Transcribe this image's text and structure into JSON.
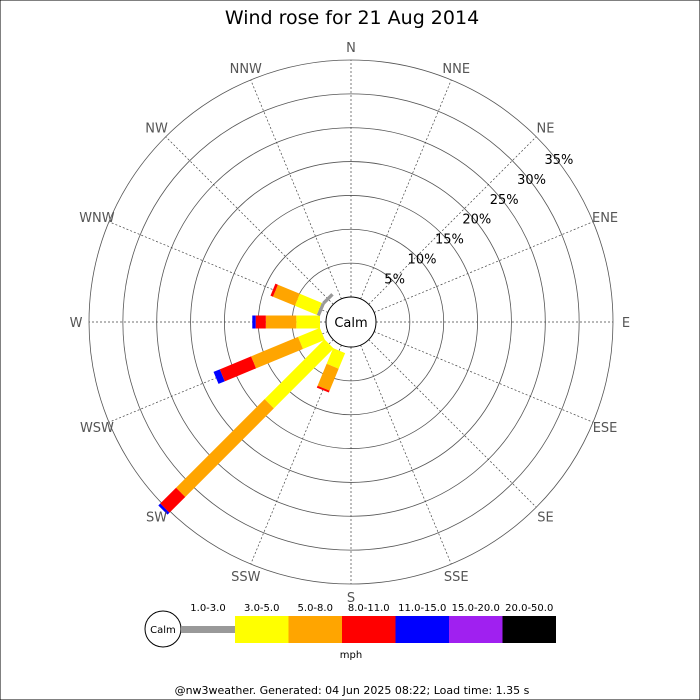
{
  "chart_data": {
    "type": "wind-rose",
    "title": "Wind rose for 21 Aug 2014",
    "center_label": "Calm",
    "directions": [
      "N",
      "NNE",
      "NE",
      "ENE",
      "E",
      "ESE",
      "SE",
      "SSE",
      "S",
      "SSW",
      "SW",
      "WSW",
      "W",
      "WNW",
      "NW",
      "NNW"
    ],
    "radial_ticks": [
      "5%",
      "10%",
      "15%",
      "20%",
      "25%",
      "30%",
      "35%"
    ],
    "radial_max_percent": 35,
    "speed_bins": [
      "1.0-3.0",
      "3.0-5.0",
      "5.0-8.0",
      "8.0-11.0",
      "11.0-15.0",
      "15.0-20.0",
      "20.0-50.0"
    ],
    "speed_colors": [
      "#999999",
      "#ffff00",
      "#ffa500",
      "#ff0000",
      "#0000ff",
      "#a020f0",
      "#000000"
    ],
    "unit": "mph",
    "series": [
      {
        "direction": "SSE",
        "values": [
          0,
          0,
          0,
          0,
          0,
          0,
          0
        ]
      },
      {
        "direction": "S",
        "values": [
          0,
          0,
          0,
          0,
          0,
          0,
          0
        ]
      },
      {
        "direction": "SSW",
        "values": [
          0,
          2.5,
          3.5,
          0.3,
          0,
          0,
          0
        ]
      },
      {
        "direction": "SW",
        "values": [
          0,
          12.5,
          18.5,
          3.3,
          0.4,
          0,
          0
        ]
      },
      {
        "direction": "WSW",
        "values": [
          0,
          3.5,
          7.5,
          5.0,
          1.0,
          0,
          0
        ]
      },
      {
        "direction": "W",
        "values": [
          0,
          3.5,
          4.5,
          1.5,
          0.5,
          0,
          0
        ]
      },
      {
        "direction": "WNW",
        "values": [
          0.5,
          3.5,
          3.5,
          0.4,
          0,
          0,
          0
        ]
      },
      {
        "direction": "NW",
        "values": [
          0.5,
          0,
          0,
          0,
          0,
          0,
          0
        ]
      }
    ],
    "legend_title": "mph",
    "footer": "@nw3weather. Generated: 04 Jun 2025 08:22; Load time: 1.35 s"
  }
}
